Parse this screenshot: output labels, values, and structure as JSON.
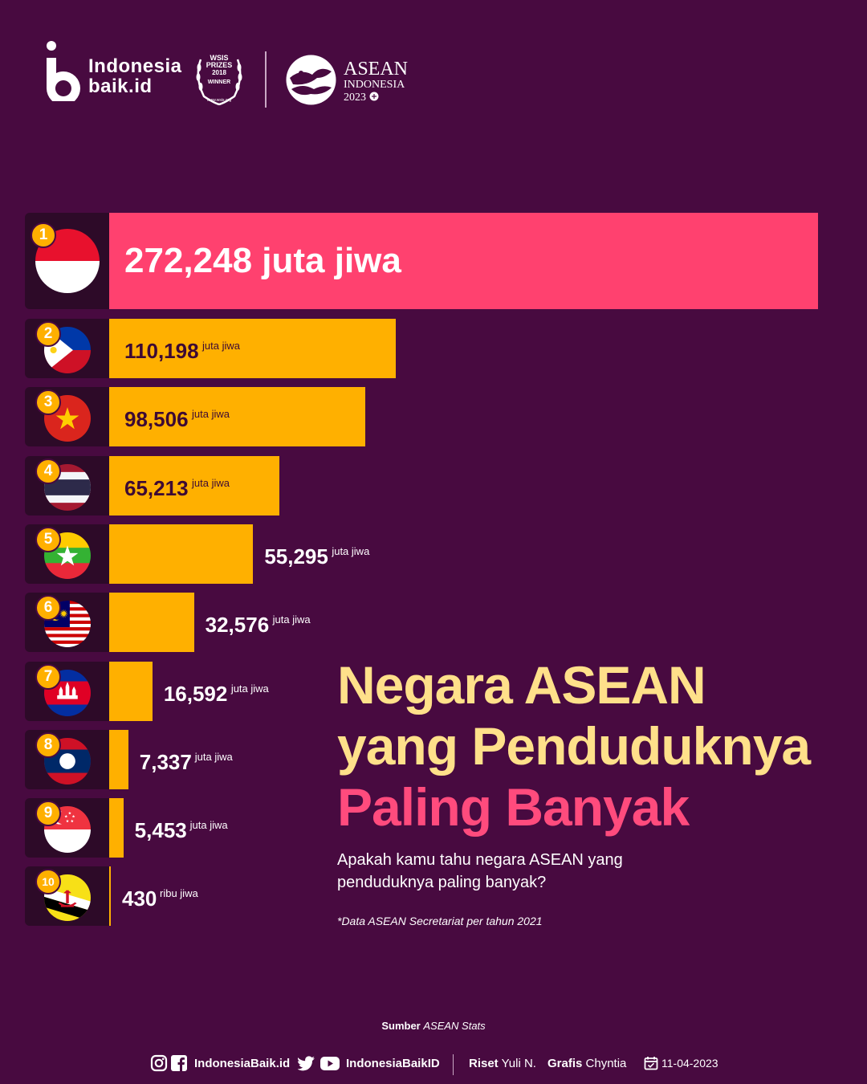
{
  "header": {
    "brand_line1": "Indonesia",
    "brand_line2": "baik.id",
    "wsis_line1": "WSIS",
    "wsis_line2": "PRIZES",
    "wsis_line3": "2018",
    "wsis_line4": "WINNER",
    "wsis_url": "www.wsis.org",
    "asean_line1": "ASEAN",
    "asean_line2": "INDONESIA",
    "asean_line3": "2023"
  },
  "colors": {
    "background": "#480a40",
    "top_bar": "#ff416f",
    "bar": "#ffb000",
    "title_yellow": "#ffe08a",
    "title_pink": "#ff4b7d",
    "rank_badge": "#ffb000"
  },
  "chart_data": {
    "type": "bar",
    "orientation": "horizontal",
    "ranks": [
      "1",
      "2",
      "3",
      "4",
      "5",
      "6",
      "7",
      "8",
      "9",
      "10"
    ],
    "flag_icons": [
      "indonesia-flag-icon",
      "philippines-flag-icon",
      "vietnam-flag-icon",
      "thailand-flag-icon",
      "myanmar-flag-icon",
      "malaysia-flag-icon",
      "cambodia-flag-icon",
      "laos-flag-icon",
      "singapore-flag-icon",
      "brunei-flag-icon"
    ],
    "values": [
      272248,
      110198,
      98506,
      65213,
      55295,
      32576,
      16592,
      7337,
      5453,
      430
    ],
    "value_labels": [
      "272,248 juta jiwa",
      "110,198",
      "98,506",
      "65,213",
      "55,295",
      "32,576",
      "16,592",
      "7,337",
      "5,453",
      "430"
    ],
    "unit_labels": [
      "",
      "juta jiwa",
      "juta jiwa",
      "juta jiwa",
      "juta jiwa",
      "juta jiwa",
      "juta jiwa",
      "juta jiwa",
      "juta jiwa",
      "ribu jiwa"
    ],
    "unit": "ribu jiwa",
    "legend": "none",
    "grid": false
  },
  "title": {
    "line1": "Negara ASEAN",
    "line2": "yang Penduduknya",
    "line3": "Paling Banyak"
  },
  "subtitle": "Apakah kamu tahu negara ASEAN yang penduduknya paling banyak?",
  "data_note": "*Data ASEAN Secretariat per tahun 2021",
  "source": {
    "label": "Sumber",
    "value": "ASEAN Stats"
  },
  "footer": {
    "handle1": "IndonesiaBaik.id",
    "handle2": "IndonesiaBaikID",
    "riset_label": "Riset",
    "riset_name": "Yuli N.",
    "grafis_label": "Grafis",
    "grafis_name": "Chyntia",
    "date": "11-04-2023"
  }
}
